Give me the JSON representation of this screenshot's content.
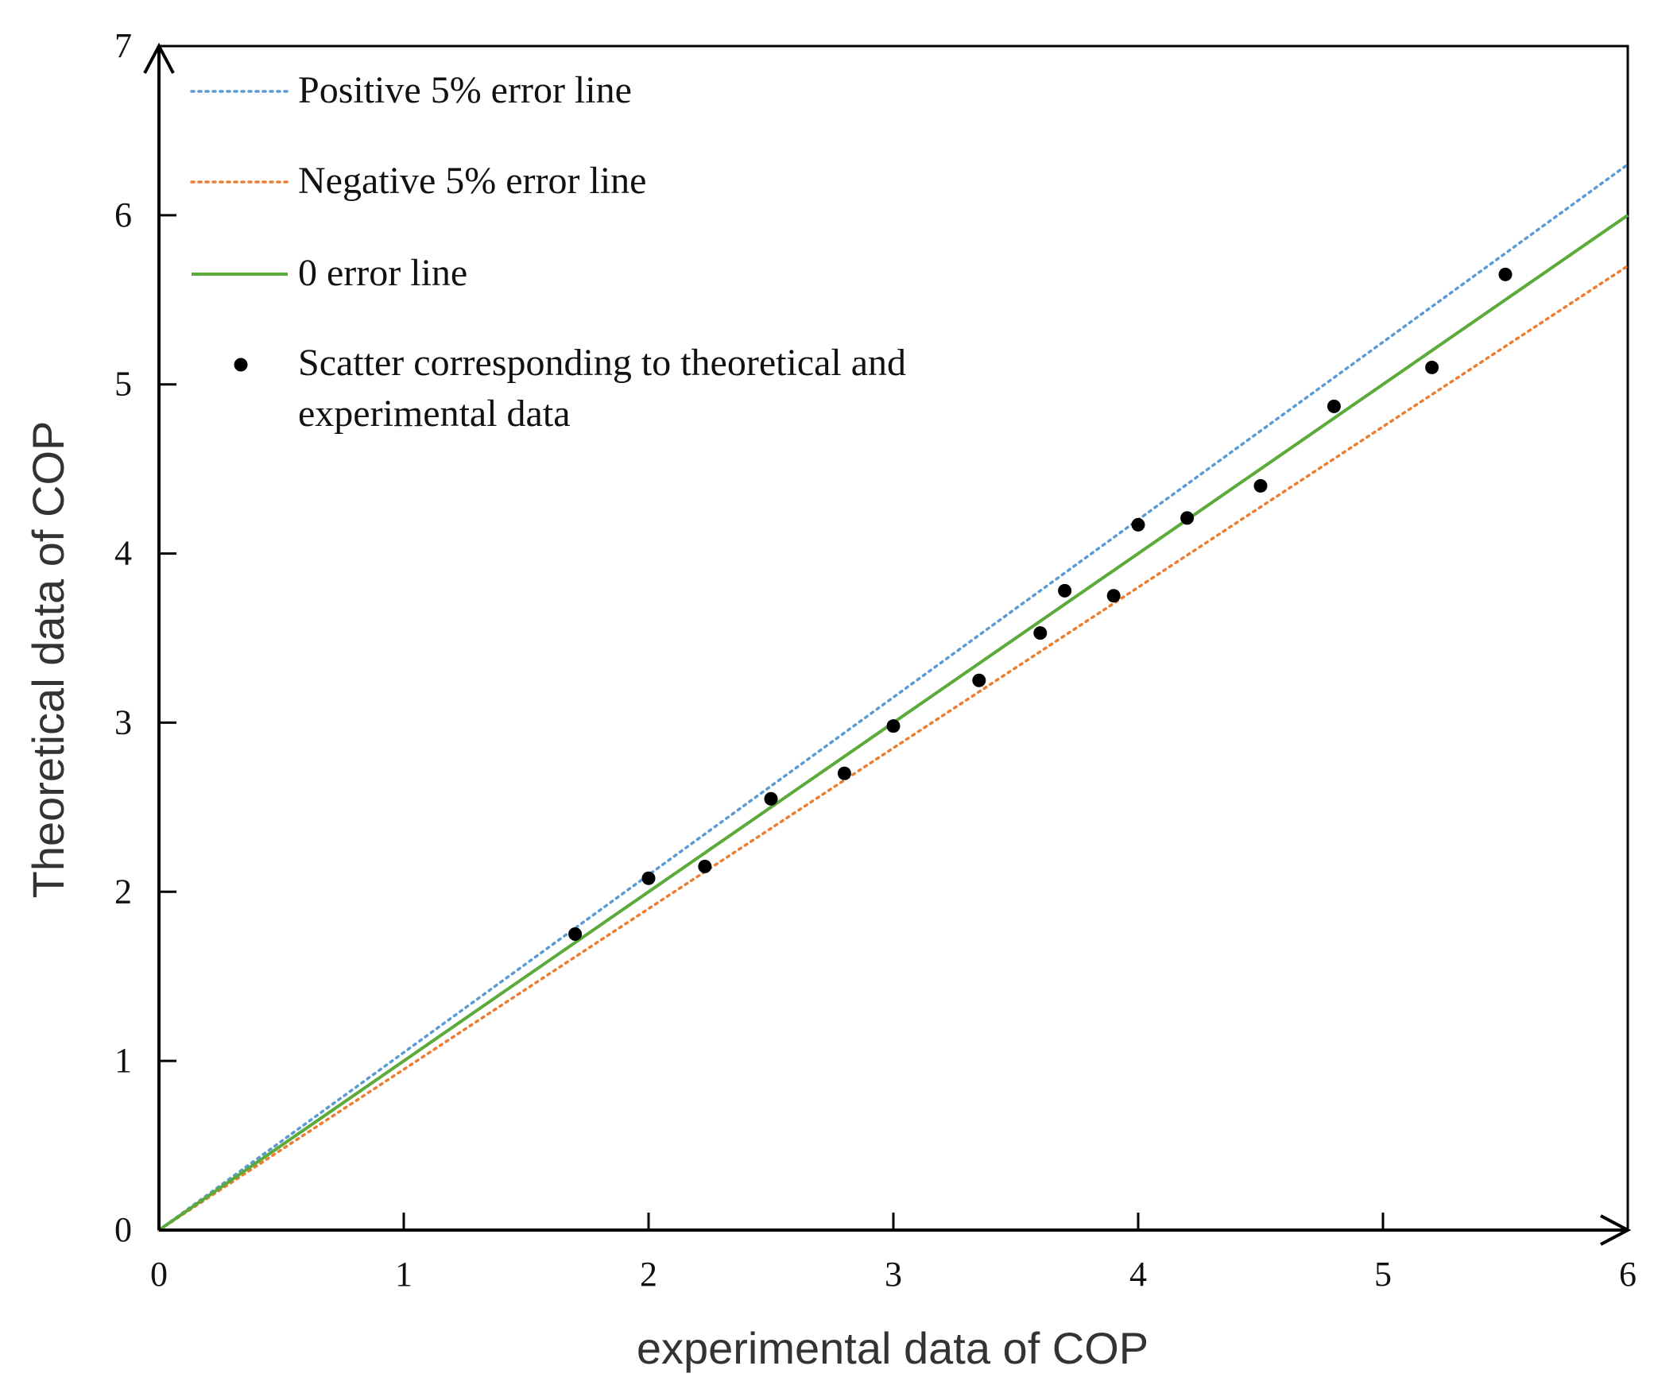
{
  "chart_data": {
    "type": "scatter",
    "title": "",
    "xlabel": "experimental data of COP",
    "ylabel": "Theoretical data of COP",
    "xlim": [
      0,
      6
    ],
    "ylim": [
      0,
      7
    ],
    "x_ticks": [
      "0",
      "1",
      "2",
      "3",
      "4",
      "5",
      "6"
    ],
    "y_ticks": [
      "0",
      "1",
      "2",
      "3",
      "4",
      "5",
      "6",
      "7"
    ],
    "grid": false,
    "legend_position": "top-left",
    "lines": [
      {
        "name": "Positive 5% error line",
        "slope": 1.05,
        "style": "dotted",
        "color": "#5B9BD5"
      },
      {
        "name": "Negative 5% error line",
        "slope": 0.95,
        "style": "dotted",
        "color": "#ED7D31"
      },
      {
        "name": "0 error line",
        "slope": 1.0,
        "style": "solid",
        "color": "#5BAA3A"
      }
    ],
    "scatter": {
      "name_line1": "Scatter corresponding to theoretical and",
      "name_line2": "experimental data",
      "color": "#000000",
      "points": [
        {
          "x": 1.7,
          "y": 1.75
        },
        {
          "x": 2.0,
          "y": 2.08
        },
        {
          "x": 2.23,
          "y": 2.15
        },
        {
          "x": 2.5,
          "y": 2.55
        },
        {
          "x": 2.8,
          "y": 2.7
        },
        {
          "x": 3.0,
          "y": 2.98
        },
        {
          "x": 3.35,
          "y": 3.25
        },
        {
          "x": 3.6,
          "y": 3.53
        },
        {
          "x": 3.7,
          "y": 3.78
        },
        {
          "x": 3.9,
          "y": 3.75
        },
        {
          "x": 4.0,
          "y": 4.17
        },
        {
          "x": 4.2,
          "y": 4.21
        },
        {
          "x": 4.5,
          "y": 4.4
        },
        {
          "x": 4.8,
          "y": 4.87
        },
        {
          "x": 5.2,
          "y": 5.1
        },
        {
          "x": 5.5,
          "y": 5.65
        }
      ]
    }
  }
}
